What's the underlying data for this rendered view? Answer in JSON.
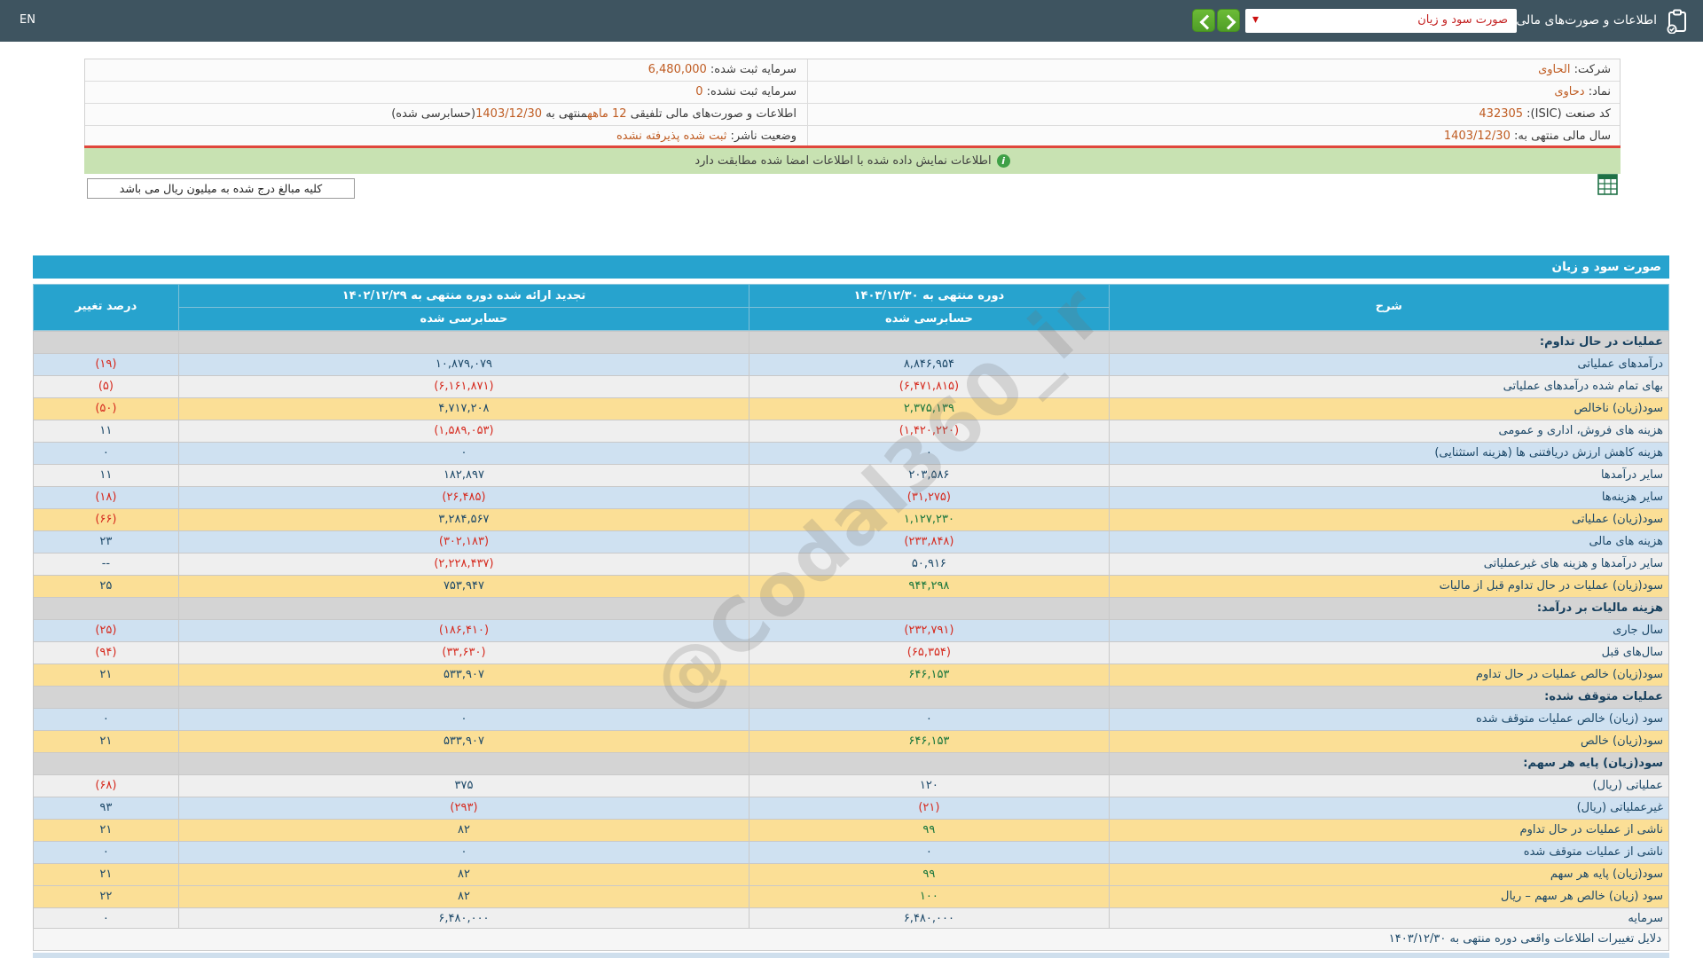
{
  "topbar": {
    "en_label": "EN",
    "title": "اطلاعات و صورت‌های مالی تلفیقی",
    "dropdown_value": "صورت سود و زیان",
    "colors": {
      "bar": "#3e5460",
      "button_green": "#55ab2c",
      "dropdown_text": "#c42222"
    }
  },
  "company_info": {
    "rows": [
      {
        "right": {
          "label": "شرکت:",
          "value": "الحاوی"
        },
        "left": [
          {
            "text": "سرمایه ثبت شده: "
          },
          {
            "text": "6,480,000",
            "hl": true
          }
        ]
      },
      {
        "right": {
          "label": "نماد:",
          "value": "دحاوی"
        },
        "left": [
          {
            "text": "سرمایه ثبت نشده: "
          },
          {
            "text": "0",
            "hl": true
          }
        ]
      },
      {
        "right": {
          "label": "کد صنعت (ISIC):",
          "value": "432305"
        },
        "left": [
          {
            "text": "اطلاعات و صورت‌های مالی تلفیقی "
          },
          {
            "text": "12 ماهه",
            "hl": true
          },
          {
            "text": "منتهی به "
          },
          {
            "text": "1403/12/30",
            "hl": true
          },
          {
            "text": "(حسابرسی شده)"
          }
        ]
      },
      {
        "right": {
          "label": "سال مالی منتهی به:",
          "value": "1403/12/30"
        },
        "left": [
          {
            "text": "وضعیت ناشر: "
          },
          {
            "text": "ثبت شده پذیرفته نشده",
            "hl": true
          }
        ]
      }
    ]
  },
  "banner": {
    "text": "اطلاعات نمایش داده شده با اطلاعات امضا شده مطابقت دارد",
    "icon": "info-icon",
    "bg": "#c8e2b2"
  },
  "unit_note": "کلیه مبالغ درج شده به میلیون ریال می باشد",
  "statement": {
    "title": "صورت سود و زیان",
    "headers": {
      "description": "شرح",
      "current_period": "دوره منتهی به ۱۴۰۳/۱۲/۳۰",
      "prior_period": "تجدید ارائه شده دوره منتهی به ۱۴۰۲/۱۲/۲۹",
      "audited": "حسابرسی شده",
      "pct_change": "درصد تغییر"
    },
    "rows": [
      {
        "label": "عملیات در حال تداوم:",
        "v1403": "",
        "v1402": "",
        "pct": "",
        "shade": "section"
      },
      {
        "label": "درآمدهای عملیاتی",
        "v1403": "۸,۸۴۶,۹۵۴",
        "v1402": "۱۰,۸۷۹,۰۷۹",
        "pct": "(۱۹)",
        "shade": "blue"
      },
      {
        "label": "بهای تمام شده درآمدهای عملیاتی",
        "v1403": "(۶,۴۷۱,۸۱۵)",
        "v1402": "(۶,۱۶۱,۸۷۱)",
        "pct": "(۵)",
        "shade": "plain"
      },
      {
        "label": "سود(زیان) ناخالص",
        "v1403": "۲,۳۷۵,۱۳۹",
        "v1402": "۴,۷۱۷,۲۰۸",
        "pct": "(۵۰)",
        "shade": "yellow"
      },
      {
        "label": "هزینه های فروش، اداری و عمومی",
        "v1403": "(۱,۴۲۰,۲۲۰)",
        "v1402": "(۱,۵۸۹,۰۵۳)",
        "pct": "۱۱",
        "shade": "plain"
      },
      {
        "label": "هزینه کاهش ارزش دریافتنی ها (هزینه استثنایی)",
        "v1403": "۰",
        "v1402": "۰",
        "pct": "۰",
        "shade": "blue"
      },
      {
        "label": "سایر درآمدها",
        "v1403": "۲۰۳,۵۸۶",
        "v1402": "۱۸۲,۸۹۷",
        "pct": "۱۱",
        "shade": "plain"
      },
      {
        "label": "سایر هزینه‌ها",
        "v1403": "(۳۱,۲۷۵)",
        "v1402": "(۲۶,۴۸۵)",
        "pct": "(۱۸)",
        "shade": "blue"
      },
      {
        "label": "سود(زیان) عملیاتی",
        "v1403": "۱,۱۲۷,۲۳۰",
        "v1402": "۳,۲۸۴,۵۶۷",
        "pct": "(۶۶)",
        "shade": "yellow"
      },
      {
        "label": "هزینه های مالی",
        "v1403": "(۲۳۳,۸۴۸)",
        "v1402": "(۳۰۲,۱۸۳)",
        "pct": "۲۳",
        "shade": "blue"
      },
      {
        "label": "سایر درآمدها و هزینه های غیرعملیاتی",
        "v1403": "۵۰,۹۱۶",
        "v1402": "(۲,۲۲۸,۴۳۷)",
        "pct": "--",
        "shade": "plain"
      },
      {
        "label": "سود(زیان) عملیات در حال تداوم قبل از مالیات",
        "v1403": "۹۴۴,۲۹۸",
        "v1402": "۷۵۳,۹۴۷",
        "pct": "۲۵",
        "shade": "yellow"
      },
      {
        "label": "هزینه مالیات بر درآمد:",
        "v1403": "",
        "v1402": "",
        "pct": "",
        "shade": "section"
      },
      {
        "label": "سال جاری",
        "v1403": "(۲۳۲,۷۹۱)",
        "v1402": "(۱۸۶,۴۱۰)",
        "pct": "(۲۵)",
        "shade": "blue"
      },
      {
        "label": "سال‌های قبل",
        "v1403": "(۶۵,۳۵۴)",
        "v1402": "(۳۳,۶۳۰)",
        "pct": "(۹۴)",
        "shade": "plain"
      },
      {
        "label": "سود(زیان) خالص عملیات در حال تداوم",
        "v1403": "۶۴۶,۱۵۳",
        "v1402": "۵۳۳,۹۰۷",
        "pct": "۲۱",
        "shade": "yellow"
      },
      {
        "label": "عملیات متوقف شده:",
        "v1403": "",
        "v1402": "",
        "pct": "",
        "shade": "section"
      },
      {
        "label": "سود (زیان) خالص عملیات متوقف شده",
        "v1403": "۰",
        "v1402": "۰",
        "pct": "۰",
        "shade": "blue"
      },
      {
        "label": "سود(زیان) خالص",
        "v1403": "۶۴۶,۱۵۳",
        "v1402": "۵۳۳,۹۰۷",
        "pct": "۲۱",
        "shade": "yellow"
      },
      {
        "label": "سود(زیان) پایه هر سهم:",
        "v1403": "",
        "v1402": "",
        "pct": "",
        "shade": "section"
      },
      {
        "label": "عملیاتی (ریال)",
        "v1403": "۱۲۰",
        "v1402": "۳۷۵",
        "pct": "(۶۸)",
        "shade": "plain"
      },
      {
        "label": "غیرعملیاتی (ریال)",
        "v1403": "(۲۱)",
        "v1402": "(۲۹۳)",
        "pct": "۹۳",
        "shade": "blue"
      },
      {
        "label": "ناشی از عملیات در حال تداوم",
        "v1403": "۹۹",
        "v1402": "۸۲",
        "pct": "۲۱",
        "shade": "yellow"
      },
      {
        "label": "ناشی از عملیات متوقف شده",
        "v1403": "۰",
        "v1402": "۰",
        "pct": "۰",
        "shade": "blue"
      },
      {
        "label": "سود(زیان) پایه هر سهم",
        "v1403": "۹۹",
        "v1402": "۸۲",
        "pct": "۲۱",
        "shade": "yellow"
      },
      {
        "label": "سود (زیان) خالص هر سهم – ریال",
        "v1403": "۱۰۰",
        "v1402": "۸۲",
        "pct": "۲۲",
        "shade": "yellow"
      },
      {
        "label": "سرمایه",
        "v1403": "۶,۴۸۰,۰۰۰",
        "v1402": "۶,۴۸۰,۰۰۰",
        "pct": "۰",
        "shade": "plain"
      }
    ],
    "colors": {
      "header": "#27a3ce",
      "row_blue": "#cfe1f1",
      "row_plain": "#efefef",
      "row_highlight": "#fbdf96",
      "row_section": "#d4d4d4",
      "value_positive": "#1c4868",
      "value_negative": "#d62b1f",
      "value_subtotal": "#17753c"
    }
  },
  "watermark": "@Codal360_ir",
  "bottom": {
    "reasons_title": "دلایل تغییرات اطلاعات واقعی دوره منتهی به ۱۴۰۳/۱۲/۳۰"
  }
}
